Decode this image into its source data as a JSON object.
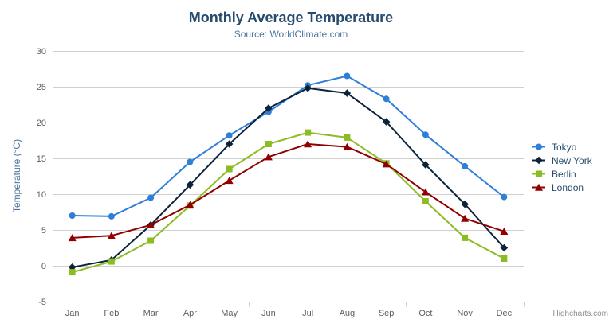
{
  "header": {
    "title": "Monthly Average Temperature",
    "subtitle": "Source: WorldClimate.com"
  },
  "toolbar": {
    "export_menu_icon": "hamburger-icon"
  },
  "credits": {
    "label": "Highcharts.com"
  },
  "colors": {
    "title": "#274b6d",
    "subtitle": "#4d759e",
    "axis_labels": "#606060",
    "axis_line": "#c0d0e0",
    "gridline": "#d0d0d0",
    "legend_text": "#274b6d",
    "credits_text": "#909090"
  },
  "chart_data": {
    "type": "line",
    "title": "Monthly Average Temperature",
    "subtitle": "Source: WorldClimate.com",
    "xlabel": "",
    "ylabel": "Temperature (°C)",
    "ylim": [
      -5,
      30
    ],
    "ytick_step": 5,
    "yticks": [
      -5,
      0,
      5,
      10,
      15,
      20,
      25,
      30
    ],
    "grid": true,
    "legend_position": "right",
    "categories": [
      "Jan",
      "Feb",
      "Mar",
      "Apr",
      "May",
      "Jun",
      "Jul",
      "Aug",
      "Sep",
      "Oct",
      "Nov",
      "Dec"
    ],
    "series": [
      {
        "name": "Tokyo",
        "color": "#2f7ed8",
        "marker": "circle",
        "values": [
          7.0,
          6.9,
          9.5,
          14.5,
          18.2,
          21.5,
          25.2,
          26.5,
          23.3,
          18.3,
          13.9,
          9.6
        ]
      },
      {
        "name": "New York",
        "color": "#0d233a",
        "marker": "diamond",
        "values": [
          -0.2,
          0.8,
          5.7,
          11.3,
          17.0,
          22.0,
          24.8,
          24.1,
          20.1,
          14.1,
          8.6,
          2.5
        ]
      },
      {
        "name": "Berlin",
        "color": "#8bbc21",
        "marker": "square",
        "values": [
          -0.9,
          0.6,
          3.5,
          8.4,
          13.5,
          17.0,
          18.6,
          17.9,
          14.3,
          9.0,
          3.9,
          1.0
        ]
      },
      {
        "name": "London",
        "color": "#910000",
        "marker": "triangle",
        "values": [
          3.9,
          4.2,
          5.7,
          8.5,
          11.9,
          15.2,
          17.0,
          16.6,
          14.2,
          10.3,
          6.6,
          4.8
        ]
      }
    ]
  }
}
